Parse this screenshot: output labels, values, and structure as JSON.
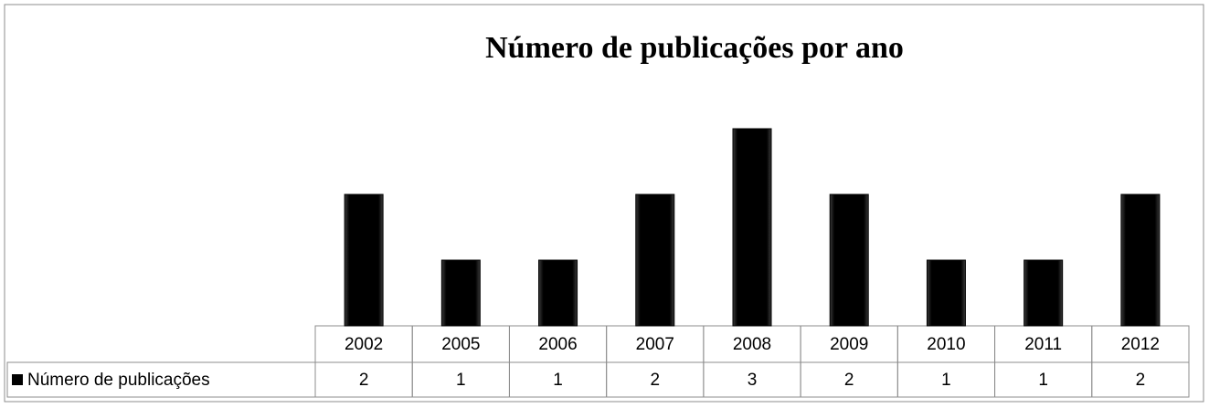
{
  "chart_data": {
    "type": "bar",
    "title": "Número de publicações por ano",
    "categories": [
      "2002",
      "2005",
      "2006",
      "2007",
      "2008",
      "2009",
      "2010",
      "2011",
      "2012"
    ],
    "series": [
      {
        "name": "Número de publicações",
        "color": "#000000",
        "values": [
          2,
          1,
          1,
          2,
          3,
          2,
          1,
          1,
          2
        ]
      }
    ]
  }
}
